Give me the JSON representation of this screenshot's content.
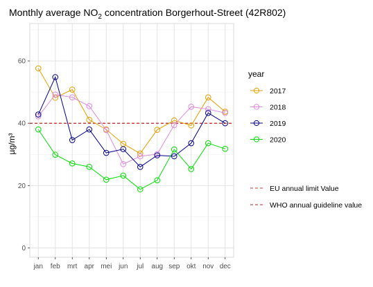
{
  "chart_data": {
    "type": "line",
    "title": {
      "prefix": "Monthly average NO",
      "subscript": "2",
      "suffix": " concentration Borgerhout-Street (42R802)"
    },
    "xlabel": "",
    "ylabel": "µg/m³",
    "categories": [
      "jan",
      "feb",
      "mrt",
      "apr",
      "mei",
      "jun",
      "jul",
      "aug",
      "sep",
      "okt",
      "nov",
      "dec"
    ],
    "ylim": [
      -3,
      72
    ],
    "yticks": [
      0,
      20,
      40,
      60
    ],
    "grid": true,
    "legend_title": "year",
    "legend_position": "right",
    "series": [
      {
        "name": "2017",
        "color": "#e69f00",
        "values": [
          57.6,
          48.2,
          50.8,
          41.1,
          38.0,
          33.4,
          30.3,
          37.9,
          40.9,
          39.3,
          48.3,
          43.7
        ]
      },
      {
        "name": "2018",
        "color": "#dd88dd",
        "values": [
          42.2,
          49.2,
          48.3,
          45.5,
          37.8,
          26.9,
          29.4,
          30.1,
          39.4,
          45.3,
          44.5,
          43.3
        ]
      },
      {
        "name": "2019",
        "color": "#00008b",
        "values": [
          42.8,
          54.8,
          34.6,
          38.0,
          30.5,
          31.7,
          26.0,
          29.7,
          29.4,
          33.6,
          43.3,
          40.0
        ]
      },
      {
        "name": "2020",
        "color": "#00dd00",
        "values": [
          38.0,
          29.9,
          27.1,
          26.0,
          21.9,
          23.2,
          18.8,
          21.7,
          31.6,
          25.3,
          33.6,
          31.8
        ]
      }
    ],
    "reference_lines": [
      {
        "name": "EU annual limit Value",
        "value": 40,
        "color": "#d73030"
      },
      {
        "name": "WHO annual guideline value",
        "value": 40,
        "color": "#b22222"
      }
    ]
  }
}
